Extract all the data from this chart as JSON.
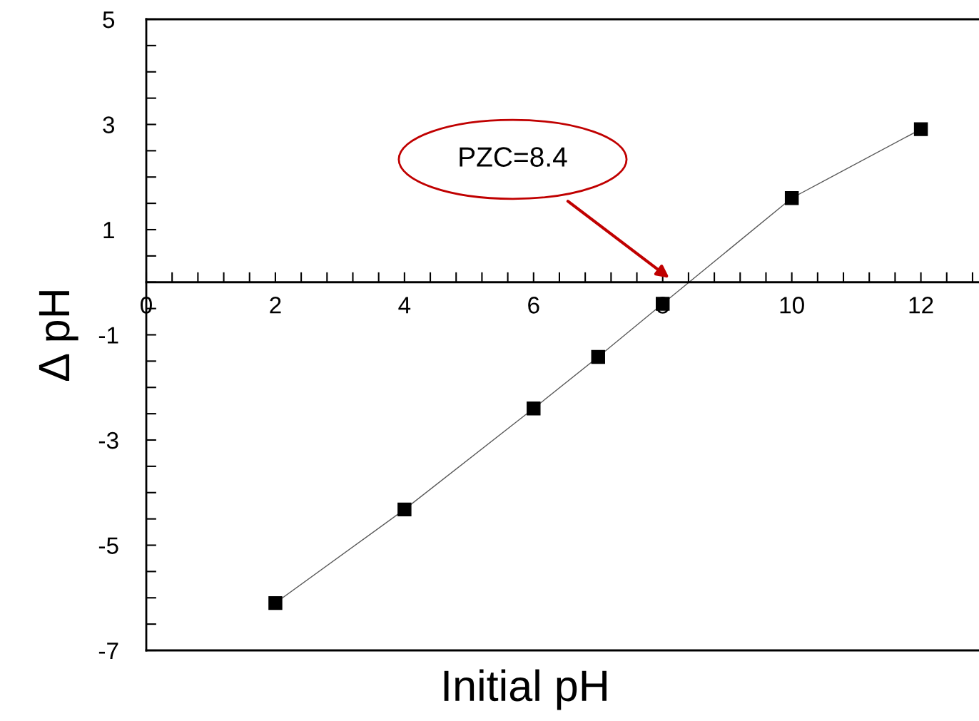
{
  "chart_data": {
    "type": "line",
    "xlabel": "Initial pH",
    "ylabel": "Δ pH",
    "x": [
      2,
      4,
      6,
      7,
      8,
      10,
      12
    ],
    "series": [
      {
        "color": "#000000",
        "values": [
          -6.1,
          -4.32,
          -2.4,
          -1.42,
          -0.41,
          1.6,
          2.91
        ]
      }
    ],
    "marker": "square",
    "line_style": "solid",
    "grid": false,
    "legend": false,
    "xlim": [
      0,
      12.9
    ],
    "ylim": [
      -7,
      5
    ],
    "xticks": [
      0,
      {
        "value": 0.4,
        "label": null
      },
      {
        "value": 0.8,
        "label": null
      },
      {
        "value": 1.2,
        "label": null
      },
      {
        "value": 1.6,
        "label": null
      },
      2,
      {
        "value": 2.4,
        "label": null
      },
      {
        "value": 2.8,
        "label": null
      },
      {
        "value": 3.2,
        "label": null
      },
      {
        "value": 3.6,
        "label": null
      },
      4,
      {
        "value": 4.4,
        "label": null
      },
      {
        "value": 4.8,
        "label": null
      },
      {
        "value": 5.2,
        "label": null
      },
      {
        "value": 5.6,
        "label": null
      },
      6,
      {
        "value": 6.4,
        "label": null
      },
      {
        "value": 6.8,
        "label": null
      },
      {
        "value": 7.2,
        "label": null
      },
      {
        "value": 7.6,
        "label": null
      },
      8,
      {
        "value": 8.4,
        "label": null
      },
      {
        "value": 8.8,
        "label": null
      },
      {
        "value": 9.2,
        "label": null
      },
      {
        "value": 9.6,
        "label": null
      },
      10,
      {
        "value": 10.4,
        "label": null
      },
      {
        "value": 10.8,
        "label": null
      },
      {
        "value": 11.2,
        "label": null
      },
      {
        "value": 11.6,
        "label": null
      },
      12,
      {
        "value": 12.4,
        "label": null
      },
      {
        "value": 12.8,
        "label": null
      }
    ],
    "yticks": [
      -7,
      {
        "value": -6.5,
        "label": null
      },
      {
        "value": -6,
        "label": null
      },
      {
        "value": -5.5,
        "label": null
      },
      -5,
      {
        "value": -4.5,
        "label": null
      },
      {
        "value": -4,
        "label": null
      },
      {
        "value": -3.5,
        "label": null
      },
      -3,
      {
        "value": -2.5,
        "label": null
      },
      {
        "value": -2,
        "label": null
      },
      {
        "value": -1.5,
        "label": null
      },
      -1,
      {
        "value": -0.5,
        "label": null
      },
      {
        "value": 0,
        "label": null
      },
      {
        "value": 0.5,
        "label": null
      },
      1,
      {
        "value": 1.5,
        "label": null
      },
      {
        "value": 2,
        "label": null
      },
      {
        "value": 2.5,
        "label": null
      },
      3,
      {
        "value": 3.5,
        "label": null
      },
      {
        "value": 4,
        "label": null
      },
      {
        "value": 4.5,
        "label": null
      },
      5
    ],
    "annotations": [
      "PZC=8.4"
    ]
  }
}
